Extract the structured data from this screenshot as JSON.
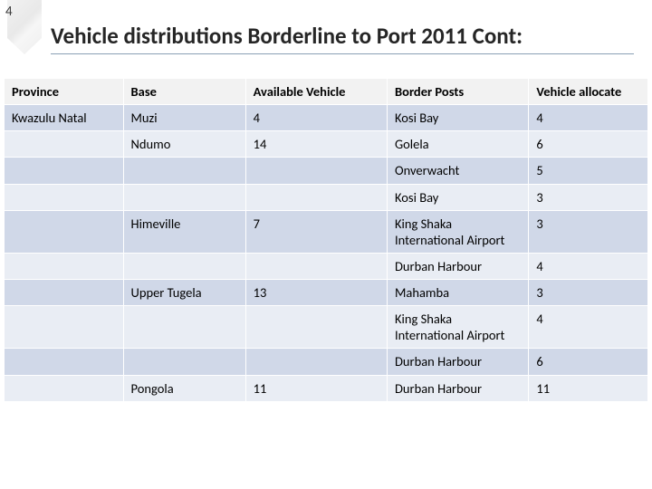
{
  "page_number": "4",
  "title": "Vehicle distributions Borderline to Port 2011 Cont:",
  "colors": {
    "header_bg": "#f2f2f2",
    "band_a": "#d0d8e8",
    "band_b": "#e9edf4",
    "border": "#ffffff",
    "title_rule": "#8a9fb5",
    "text": "#000000"
  },
  "table": {
    "columns": [
      "Province",
      "Base",
      "Available Vehicle",
      "Border Posts",
      "Vehicle allocate"
    ],
    "col_widths_pct": [
      18.5,
      19,
      22,
      22,
      18.5
    ],
    "rows": [
      {
        "band": "a",
        "cells": [
          "Kwazulu Natal",
          "Muzi",
          "4",
          "Kosi Bay",
          "4"
        ]
      },
      {
        "band": "b",
        "cells": [
          "",
          "Ndumo",
          "14",
          "Golela",
          "6"
        ]
      },
      {
        "band": "a",
        "cells": [
          "",
          "",
          "",
          "Onverwacht",
          "5"
        ]
      },
      {
        "band": "b",
        "cells": [
          "",
          "",
          "",
          "Kosi Bay",
          "3"
        ]
      },
      {
        "band": "a",
        "cells": [
          "",
          "Himeville",
          "7",
          "King Shaka International Airport",
          "3"
        ]
      },
      {
        "band": "b",
        "cells": [
          "",
          "",
          "",
          "Durban Harbour",
          "4"
        ]
      },
      {
        "band": "a",
        "cells": [
          "",
          "Upper Tugela",
          "13",
          "Mahamba",
          "3"
        ]
      },
      {
        "band": "b",
        "cells": [
          "",
          "",
          "",
          "King Shaka International Airport",
          "4"
        ]
      },
      {
        "band": "a",
        "cells": [
          "",
          "",
          "",
          "Durban Harbour",
          "6"
        ]
      },
      {
        "band": "b",
        "cells": [
          "",
          "Pongola",
          "11",
          "Durban Harbour",
          "11"
        ]
      }
    ]
  }
}
